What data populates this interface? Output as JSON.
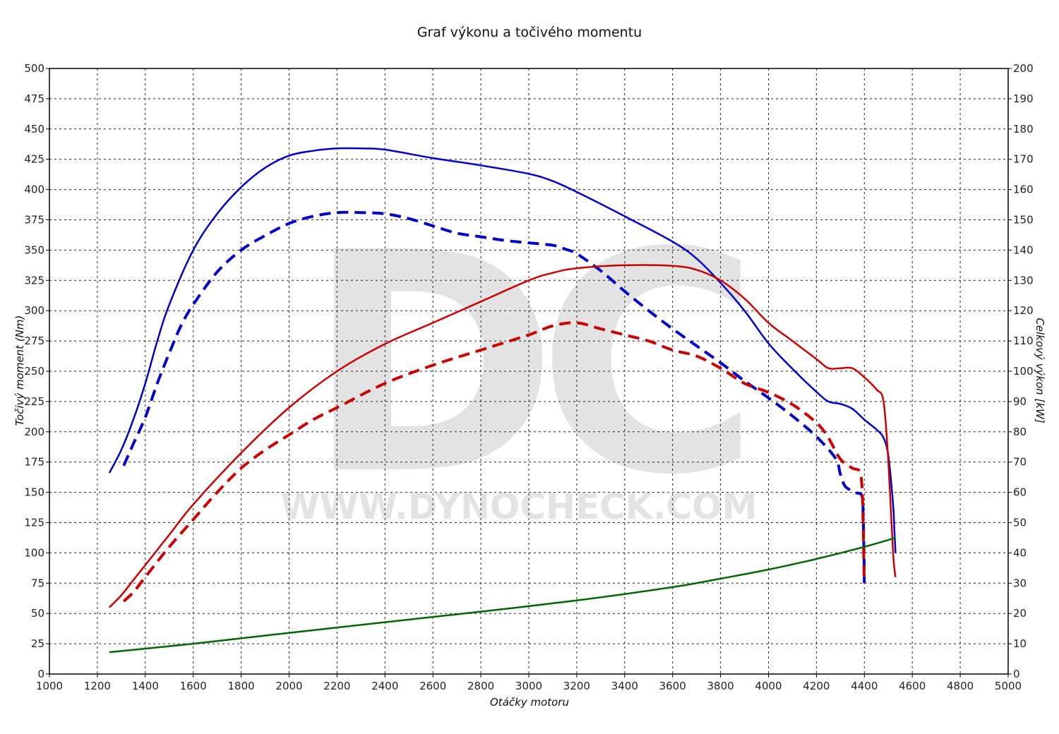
{
  "chart_data": {
    "type": "line",
    "title": "Graf výkonu a točivého momentu",
    "xlabel": "Otáčky motoru",
    "ylabel_left": "Točivý moment (Nm)",
    "ylabel_right": "Celkový výkon [kW]",
    "xlim": [
      1000,
      5000
    ],
    "ylim_left": [
      0,
      500
    ],
    "ylim_right": [
      0,
      200
    ],
    "x_ticks": [
      1000,
      1200,
      1400,
      1600,
      1800,
      2000,
      2200,
      2400,
      2600,
      2800,
      3000,
      3200,
      3400,
      3600,
      3800,
      4000,
      4200,
      4400,
      4600,
      4800,
      5000
    ],
    "y_ticks_left": [
      0,
      25,
      50,
      75,
      100,
      125,
      150,
      175,
      200,
      225,
      250,
      275,
      300,
      325,
      350,
      375,
      400,
      425,
      450,
      475,
      500
    ],
    "y_ticks_right": [
      0,
      10,
      20,
      30,
      40,
      50,
      60,
      70,
      80,
      90,
      100,
      110,
      120,
      130,
      140,
      150,
      160,
      170,
      180,
      190,
      200
    ],
    "grid": true,
    "watermark": {
      "logo": "DC",
      "text": "WWW.DYNOCHECK.COM"
    },
    "series": [
      {
        "axis": "left",
        "color": "#0000cc",
        "style": "solid",
        "points": [
          [
            1250,
            166
          ],
          [
            1300,
            185
          ],
          [
            1350,
            210
          ],
          [
            1400,
            240
          ],
          [
            1450,
            275
          ],
          [
            1500,
            305
          ],
          [
            1600,
            350
          ],
          [
            1700,
            380
          ],
          [
            1800,
            402
          ],
          [
            1900,
            418
          ],
          [
            2000,
            428
          ],
          [
            2100,
            432
          ],
          [
            2200,
            434
          ],
          [
            2300,
            434
          ],
          [
            2400,
            433
          ],
          [
            2600,
            426
          ],
          [
            2800,
            420
          ],
          [
            3000,
            413
          ],
          [
            3100,
            407
          ],
          [
            3200,
            398
          ],
          [
            3400,
            378
          ],
          [
            3600,
            357
          ],
          [
            3700,
            343
          ],
          [
            3800,
            323
          ],
          [
            3900,
            300
          ],
          [
            4000,
            273
          ],
          [
            4100,
            252
          ],
          [
            4200,
            233
          ],
          [
            4250,
            225
          ],
          [
            4300,
            223
          ],
          [
            4350,
            219
          ],
          [
            4400,
            210
          ],
          [
            4450,
            202
          ],
          [
            4480,
            195
          ],
          [
            4500,
            180
          ],
          [
            4520,
            140
          ],
          [
            4525,
            120
          ],
          [
            4530,
            100
          ]
        ]
      },
      {
        "axis": "left",
        "color": "#0000cc",
        "style": "dashed",
        "points": [
          [
            1310,
            172
          ],
          [
            1350,
            190
          ],
          [
            1400,
            212
          ],
          [
            1450,
            240
          ],
          [
            1500,
            265
          ],
          [
            1550,
            288
          ],
          [
            1600,
            305
          ],
          [
            1700,
            332
          ],
          [
            1800,
            350
          ],
          [
            1900,
            362
          ],
          [
            2000,
            372
          ],
          [
            2100,
            378
          ],
          [
            2200,
            381
          ],
          [
            2300,
            381
          ],
          [
            2400,
            380
          ],
          [
            2500,
            376
          ],
          [
            2600,
            370
          ],
          [
            2700,
            364
          ],
          [
            2800,
            361
          ],
          [
            2900,
            358
          ],
          [
            3000,
            356
          ],
          [
            3100,
            354
          ],
          [
            3150,
            351
          ],
          [
            3200,
            347
          ],
          [
            3300,
            333
          ],
          [
            3400,
            316
          ],
          [
            3500,
            300
          ],
          [
            3600,
            285
          ],
          [
            3700,
            271
          ],
          [
            3800,
            257
          ],
          [
            3900,
            242
          ],
          [
            4000,
            228
          ],
          [
            4100,
            213
          ],
          [
            4200,
            196
          ],
          [
            4280,
            178
          ],
          [
            4300,
            165
          ],
          [
            4320,
            155
          ],
          [
            4360,
            150
          ],
          [
            4390,
            147
          ],
          [
            4395,
            130
          ],
          [
            4398,
            105
          ],
          [
            4400,
            75
          ]
        ]
      },
      {
        "axis": "right",
        "color": "#cc0000",
        "style": "solid",
        "points": [
          [
            1250,
            22
          ],
          [
            1300,
            26
          ],
          [
            1350,
            31
          ],
          [
            1400,
            36
          ],
          [
            1500,
            46
          ],
          [
            1600,
            56
          ],
          [
            1800,
            73
          ],
          [
            2000,
            88
          ],
          [
            2200,
            100
          ],
          [
            2400,
            109
          ],
          [
            2600,
            116
          ],
          [
            2800,
            123
          ],
          [
            3000,
            130
          ],
          [
            3100,
            132.5
          ],
          [
            3200,
            134
          ],
          [
            3400,
            135
          ],
          [
            3600,
            134.8
          ],
          [
            3700,
            133.5
          ],
          [
            3800,
            130
          ],
          [
            3900,
            124
          ],
          [
            4000,
            116
          ],
          [
            4100,
            110
          ],
          [
            4200,
            104
          ],
          [
            4250,
            101
          ],
          [
            4300,
            101
          ],
          [
            4350,
            101
          ],
          [
            4400,
            98
          ],
          [
            4450,
            94
          ],
          [
            4480,
            90
          ],
          [
            4500,
            70
          ],
          [
            4520,
            40
          ],
          [
            4530,
            32
          ]
        ]
      },
      {
        "axis": "right",
        "color": "#cc0000",
        "style": "dashed",
        "points": [
          [
            1310,
            24
          ],
          [
            1350,
            27
          ],
          [
            1400,
            32
          ],
          [
            1500,
            42
          ],
          [
            1600,
            51
          ],
          [
            1700,
            60
          ],
          [
            1800,
            68
          ],
          [
            1900,
            74
          ],
          [
            2000,
            79
          ],
          [
            2100,
            84
          ],
          [
            2200,
            88
          ],
          [
            2400,
            96
          ],
          [
            2600,
            102
          ],
          [
            2800,
            107
          ],
          [
            3000,
            112
          ],
          [
            3100,
            115
          ],
          [
            3200,
            116
          ],
          [
            3300,
            114
          ],
          [
            3400,
            112
          ],
          [
            3500,
            110
          ],
          [
            3600,
            107
          ],
          [
            3700,
            105
          ],
          [
            3800,
            101
          ],
          [
            3900,
            96
          ],
          [
            4000,
            93
          ],
          [
            4100,
            89
          ],
          [
            4200,
            83
          ],
          [
            4250,
            78
          ],
          [
            4300,
            71
          ],
          [
            4350,
            68
          ],
          [
            4380,
            67
          ],
          [
            4390,
            62
          ],
          [
            4395,
            50
          ],
          [
            4398,
            36
          ],
          [
            4400,
            30
          ]
        ]
      },
      {
        "axis": "right",
        "color": "#006600",
        "style": "solid",
        "points": [
          [
            1250,
            7.2
          ],
          [
            1600,
            10
          ],
          [
            2000,
            13.6
          ],
          [
            2400,
            17.1
          ],
          [
            2800,
            20.6
          ],
          [
            3200,
            24.3
          ],
          [
            3600,
            28.7
          ],
          [
            3800,
            31.5
          ],
          [
            4000,
            34.5
          ],
          [
            4200,
            38
          ],
          [
            4400,
            42
          ],
          [
            4530,
            45
          ]
        ]
      }
    ]
  }
}
